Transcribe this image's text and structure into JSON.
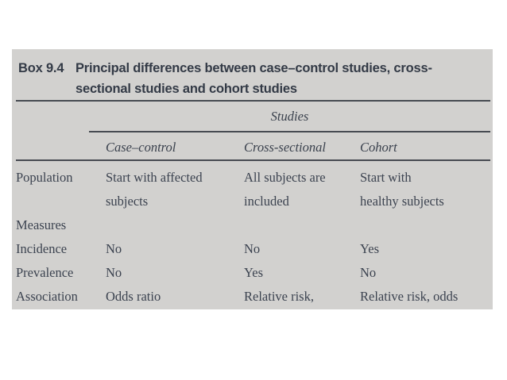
{
  "box": {
    "label": "Box 9.4",
    "title_lines": [
      "Principal differences between case–control studies, cross-",
      "sectional studies and cohort studies"
    ],
    "background": "#d2d1cf"
  },
  "table": {
    "group_header": "Studies",
    "column_headers": [
      "Case–control",
      "Cross-sectional",
      "Cohort"
    ],
    "rows": [
      {
        "label": "Population",
        "cells": [
          "Start with affected\nsubjects",
          "All subjects are\nincluded",
          "Start with\nhealthy subjects"
        ]
      },
      {
        "label": "Measures",
        "cells": [
          "",
          "",
          ""
        ]
      },
      {
        "label": "Incidence",
        "cells": [
          "No",
          "No",
          "Yes"
        ]
      },
      {
        "label": "Prevalence",
        "cells": [
          "No",
          "Yes",
          "No"
        ]
      },
      {
        "label": "Association",
        "cells": [
          "Odds ratio",
          "Relative risk,",
          "Relative risk, odds"
        ]
      }
    ]
  },
  "colors": {
    "page_background": "#ffffff",
    "box_background": "#d2d1cf",
    "title_text": "#333a46",
    "body_text": "#3c4350",
    "rule": "#474b52"
  }
}
